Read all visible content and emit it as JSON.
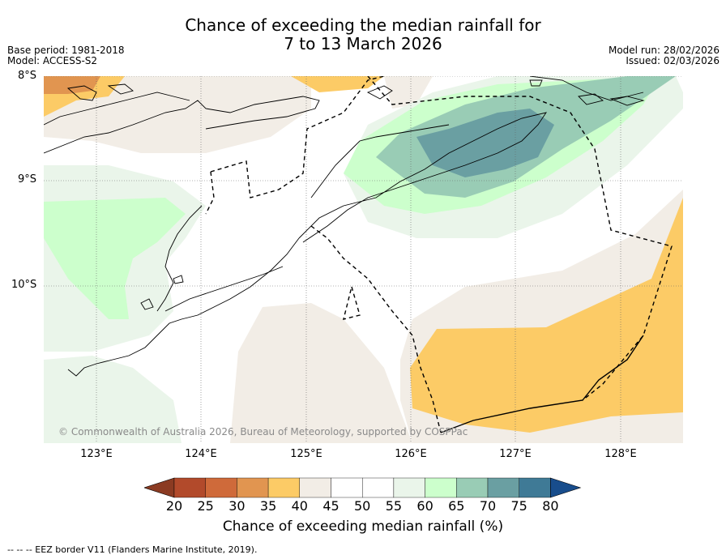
{
  "title": {
    "line1": "Chance of exceeding the median rainfall for",
    "line2": "7 to 13 March 2026"
  },
  "meta": {
    "base_period": "Base period: 1981-2018",
    "model": "Model: ACCESS-S2",
    "model_run": "Model run: 28/02/2026",
    "issued": "Issued: 02/03/2026"
  },
  "axes": {
    "lat_labels": [
      "8°S",
      "9°S",
      "10°S"
    ],
    "lon_labels": [
      "123°E",
      "124°E",
      "125°E",
      "126°E",
      "127°E",
      "128°E"
    ]
  },
  "copyright": "© Commonwealth of Australia 2026, Bureau of Meteorology, supported by COSPPac",
  "colorbar": {
    "label": "Chance of exceeding median rainfall (%)",
    "ticks": [
      "20",
      "25",
      "30",
      "35",
      "40",
      "45",
      "50",
      "55",
      "60",
      "65",
      "70",
      "75",
      "80"
    ],
    "colors": [
      "#8b3b22",
      "#b24a2b",
      "#cf6a3a",
      "#e19550",
      "#fccb66",
      "#f2ede6",
      "#ffffff",
      "#ffffff",
      "#eaf5ea",
      "#ccffcc",
      "#99ccb5",
      "#6a9fa2",
      "#3f7a96",
      "#184d8c"
    ]
  },
  "footer": "-- -- -- EEZ border V11 (Flanders Marine Institute, 2019)."
}
